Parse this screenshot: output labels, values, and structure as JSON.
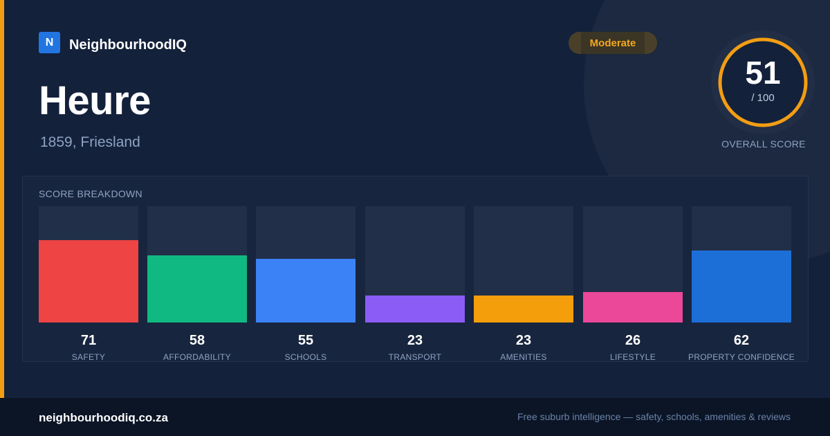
{
  "brand": {
    "logo_letter": "N",
    "name": "NeighbourhoodIQ",
    "logo_color": "#2275e0"
  },
  "rating": {
    "label": "Moderate",
    "color": "#f4a71e"
  },
  "suburb": {
    "name": "Heure",
    "location": "1859, Friesland"
  },
  "overall": {
    "score": "51",
    "max": "/ 100",
    "fraction": 0.51,
    "label": "OVERALL SCORE",
    "ring_color": "#f29d13"
  },
  "breakdown": {
    "title": "SCORE BREAKDOWN",
    "items": [
      {
        "label": "SAFETY",
        "value": "71",
        "fraction": 0.71,
        "color": "#ef4444"
      },
      {
        "label": "AFFORDABILITY",
        "value": "58",
        "fraction": 0.58,
        "color": "#10b981"
      },
      {
        "label": "SCHOOLS",
        "value": "55",
        "fraction": 0.55,
        "color": "#3b82f6"
      },
      {
        "label": "TRANSPORT",
        "value": "23",
        "fraction": 0.23,
        "color": "#8b5cf6"
      },
      {
        "label": "AMENITIES",
        "value": "23",
        "fraction": 0.23,
        "color": "#f59e0b"
      },
      {
        "label": "LIFESTYLE",
        "value": "26",
        "fraction": 0.26,
        "color": "#ec4899"
      },
      {
        "label": "PROPERTY CONFIDENCE",
        "value": "62",
        "fraction": 0.62,
        "color": "#1d6fd8"
      }
    ]
  },
  "footer": {
    "domain": "neighbourhoodiq.co.za",
    "tagline": "Free suburb intelligence — safety, schools, amenities & reviews"
  },
  "colors": {
    "background": "#13213b",
    "accent": "#f29d13",
    "footer_bg": "#0b1526"
  }
}
